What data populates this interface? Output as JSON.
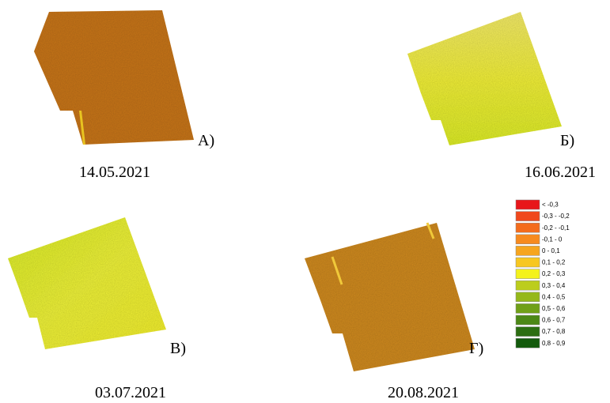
{
  "panels": [
    {
      "letter": "А)",
      "date": "14.05.2021"
    },
    {
      "letter": "Б)",
      "date": "16.06.2021"
    },
    {
      "letter": "В)",
      "date": "03.07.2021"
    },
    {
      "letter": "Г)",
      "date": "20.08.2021"
    }
  ],
  "legend": {
    "items": [
      {
        "label": "< -0,3",
        "color": "#e8161a"
      },
      {
        "label": "-0,3 - -0,2",
        "color": "#f0481c"
      },
      {
        "label": "-0,2 - -0,1",
        "color": "#f46c1c"
      },
      {
        "label": "-0,1 - 0",
        "color": "#f78a1e"
      },
      {
        "label": "0 - 0,1",
        "color": "#f6a51e"
      },
      {
        "label": "0,1 - 0,2",
        "color": "#f7c720"
      },
      {
        "label": "0,2 - 0,3",
        "color": "#f4f21c"
      },
      {
        "label": "0,3 - 0,4",
        "color": "#bccd1c"
      },
      {
        "label": "0,4 - 0,5",
        "color": "#95b81a"
      },
      {
        "label": "0,5 - 0,6",
        "color": "#70a018"
      },
      {
        "label": "0,6 - 0,7",
        "color": "#4c8816"
      },
      {
        "label": "0,7 - 0,8",
        "color": "#2c6e12"
      },
      {
        "label": "0,8 - 0,9",
        "color": "#135a0c"
      }
    ]
  }
}
